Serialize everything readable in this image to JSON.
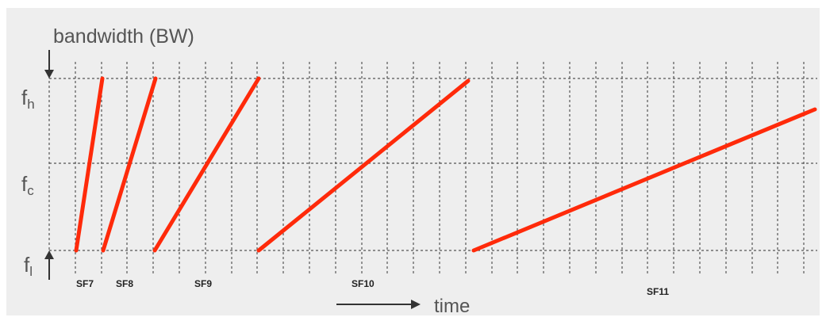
{
  "axes": {
    "y_title": "bandwidth (BW)",
    "x_title": "time",
    "f_high": "f",
    "f_high_sub": "h",
    "f_center": "f",
    "f_center_sub": "c",
    "f_low": "f",
    "f_low_sub": "l"
  },
  "colors": {
    "chirp": "#ff2a0a",
    "grid": "#555555",
    "background": "#eeeeee"
  },
  "spreading_factors": [
    {
      "label": "SF7"
    },
    {
      "label": "SF8"
    },
    {
      "label": "SF9"
    },
    {
      "label": "SF10"
    },
    {
      "label": "SF11"
    }
  ]
}
